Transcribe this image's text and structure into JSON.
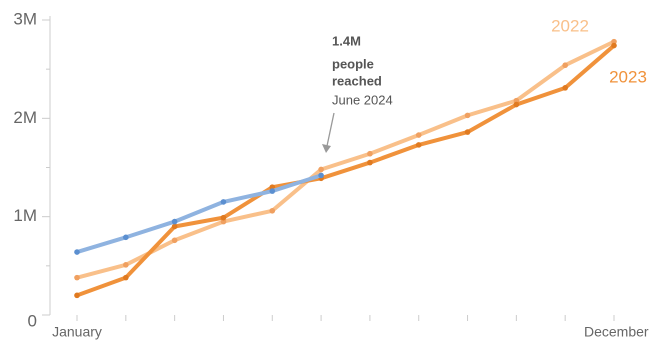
{
  "chart_data": {
    "type": "line",
    "categories": [
      "January",
      null,
      null,
      null,
      null,
      null,
      null,
      null,
      null,
      null,
      null,
      "December"
    ],
    "series": [
      {
        "name": "2022",
        "color": "#f9c08a",
        "marker_color": "#f0a060",
        "values": [
          0.38,
          0.51,
          0.76,
          0.95,
          1.06,
          1.48,
          1.64,
          1.83,
          2.03,
          2.18,
          2.54,
          2.78
        ]
      },
      {
        "name": "2023",
        "color": "#f0923b",
        "marker_color": "#e07a20",
        "values": [
          0.2,
          0.38,
          0.9,
          0.99,
          1.3,
          1.39,
          1.55,
          1.73,
          1.86,
          2.14,
          2.31,
          2.74
        ]
      },
      {
        "color": "#8fb3e0",
        "marker_color": "#5b8fd0",
        "values": [
          0.64,
          0.79,
          0.95,
          1.15,
          1.26,
          1.42,
          null,
          null,
          null,
          null,
          null,
          null
        ]
      }
    ],
    "ylim": [
      0,
      3
    ],
    "yticks": [
      0,
      {
        "value": 1,
        "label": "1M"
      },
      {
        "value": 2,
        "label": "2M"
      },
      {
        "value": 3,
        "label": "3M"
      }
    ],
    "annotation": [
      "1.4M",
      "people",
      "reached",
      "June 2024"
    ]
  }
}
